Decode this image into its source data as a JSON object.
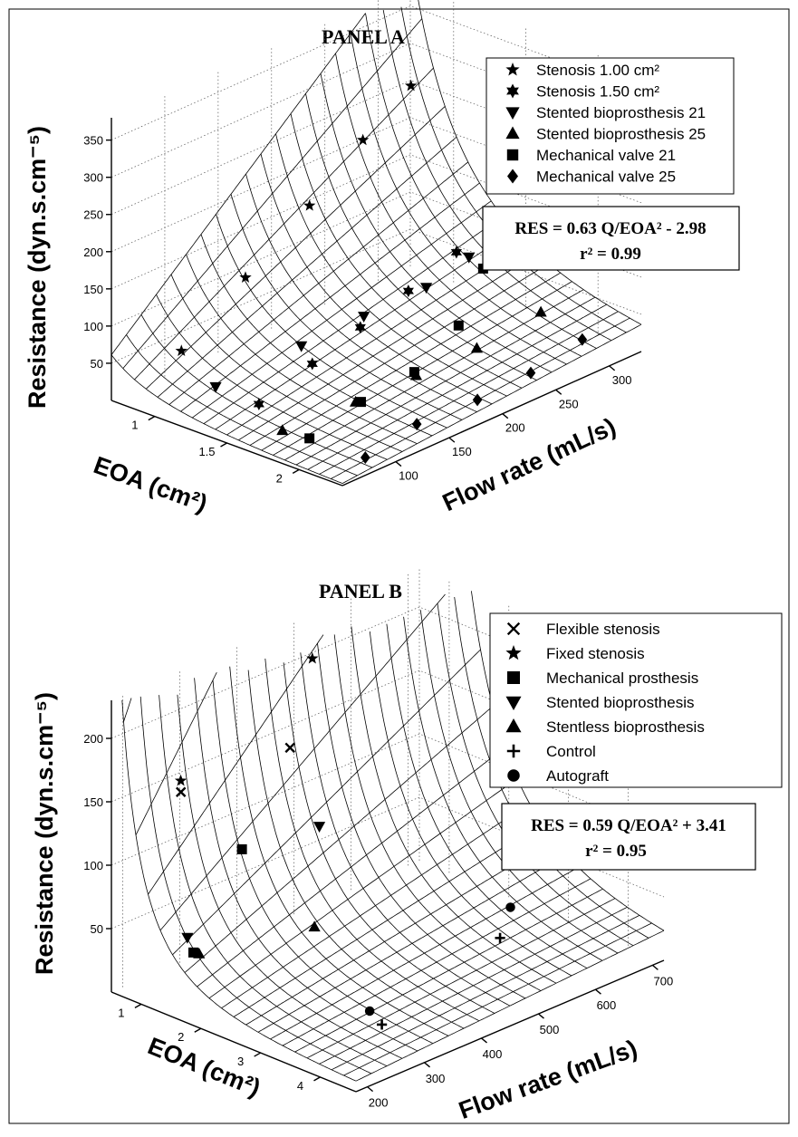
{
  "chart_data": [
    {
      "type": "surface3d",
      "title": "PANEL A",
      "xlabel": "EOA (cm²)",
      "ylabel": "Flow rate (mL/s)",
      "zlabel": "Resistance (dyn.s.cm⁻⁵)",
      "x_ticks": [
        "1",
        "1.5",
        "2"
      ],
      "y_ticks": [
        "100",
        "150",
        "200",
        "250",
        "300"
      ],
      "z_ticks": [
        "50",
        "100",
        "150",
        "200",
        "250",
        "300",
        "350"
      ],
      "xlim": [
        0.7,
        2.3
      ],
      "ylim": [
        50,
        330
      ],
      "zlim": [
        0,
        380
      ],
      "grid": true,
      "legend_position": "top-right",
      "surface": {
        "k": 0.63,
        "c": -2.98
      },
      "equation": {
        "line1": "RES = 0.63 Q/EOA² - 2.98",
        "line2": "r² = 0.99"
      },
      "series": [
        {
          "name": "Stenosis 1.00 cm²",
          "marker": "star5",
          "points": [
            [
              1.0,
              75,
              72
            ],
            [
              1.0,
              135,
              132
            ],
            [
              1.0,
              195,
              190
            ],
            [
              1.0,
              245,
              246
            ],
            [
              1.0,
              290,
              290
            ]
          ]
        },
        {
          "name": "Stenosis 1.50 cm²",
          "marker": "star6",
          "points": [
            [
              1.5,
              80,
              33
            ],
            [
              1.5,
              130,
              55
            ],
            [
              1.5,
              175,
              75
            ],
            [
              1.5,
              220,
              95
            ],
            [
              1.5,
              265,
              118
            ]
          ]
        },
        {
          "name": "Stented bioprosthesis 21",
          "marker": "tri-down",
          "points": [
            [
              1.2,
              80,
              35
            ],
            [
              1.35,
              140,
              62
            ],
            [
              1.45,
              185,
              80
            ],
            [
              1.55,
              230,
              97
            ],
            [
              1.55,
              270,
              112
            ]
          ]
        },
        {
          "name": "Stented bioprosthesis 25",
          "marker": "tri-up",
          "points": [
            [
              1.7,
              75,
              15
            ],
            [
              1.8,
              130,
              25
            ],
            [
              1.85,
              180,
              32
            ],
            [
              1.9,
              230,
              40
            ],
            [
              1.9,
              290,
              50
            ]
          ]
        },
        {
          "name": "Mechanical valve 21",
          "marker": "square",
          "points": [
            [
              1.85,
              80,
              12
            ],
            [
              1.8,
              135,
              22
            ],
            [
              1.8,
              185,
              30
            ],
            [
              1.7,
              240,
              50
            ],
            [
              1.5,
              290,
              80
            ]
          ]
        },
        {
          "name": "Mechanical valve 25",
          "marker": "diamond",
          "points": [
            [
              2.2,
              85,
              8
            ],
            [
              2.15,
              140,
              14
            ],
            [
              2.2,
              190,
              18
            ],
            [
              2.2,
              240,
              22
            ],
            [
              2.15,
              295,
              28
            ]
          ]
        }
      ]
    },
    {
      "type": "surface3d",
      "title": "PANEL B",
      "xlabel": "EOA (cm²)",
      "ylabel": "Flow rate (mL/s)",
      "zlabel": "Resistance (dyn.s.cm⁻⁵)",
      "x_ticks": [
        "1",
        "2",
        "3",
        "4"
      ],
      "y_ticks": [
        "200",
        "300",
        "400",
        "500",
        "600",
        "700"
      ],
      "z_ticks": [
        "50",
        "100",
        "150",
        "200"
      ],
      "xlim": [
        0.5,
        4.6
      ],
      "ylim": [
        180,
        720
      ],
      "zlim": [
        0,
        230
      ],
      "grid": true,
      "legend_position": "top-right",
      "surface": {
        "k": 0.59,
        "c": 3.41
      },
      "equation": {
        "line1": "RES = 0.59 Q/EOA² + 3.41",
        "line2": "r² = 0.95"
      },
      "series": [
        {
          "name": "Flexible stenosis",
          "marker": "x",
          "points": [
            [
              0.9,
              260,
              150
            ],
            [
              1.2,
              420,
              160
            ]
          ]
        },
        {
          "name": "Fixed stenosis",
          "marker": "star5",
          "points": [
            [
              0.85,
              265,
              157
            ],
            [
              1.0,
              480,
              215
            ]
          ]
        },
        {
          "name": "Mechanical prosthesis",
          "marker": "square",
          "points": [
            [
              1.3,
              240,
              35
            ],
            [
              1.35,
              320,
              102
            ]
          ]
        },
        {
          "name": "Stented bioprosthesis",
          "marker": "tri-down",
          "points": [
            [
              1.2,
              240,
              45
            ],
            [
              1.5,
              440,
              100
            ]
          ]
        },
        {
          "name": "Stentless bioprosthesis",
          "marker": "tri-up",
          "points": [
            [
              1.3,
              250,
              32
            ],
            [
              1.8,
              400,
              34
            ]
          ]
        },
        {
          "name": "Control",
          "marker": "plus",
          "points": [
            [
              3.6,
              330,
              5
            ],
            [
              3.0,
              600,
              10
            ]
          ]
        },
        {
          "name": "Autograft",
          "marker": "circle",
          "points": [
            [
              3.3,
              340,
              8
            ],
            [
              2.6,
              660,
              15
            ]
          ]
        }
      ]
    }
  ]
}
